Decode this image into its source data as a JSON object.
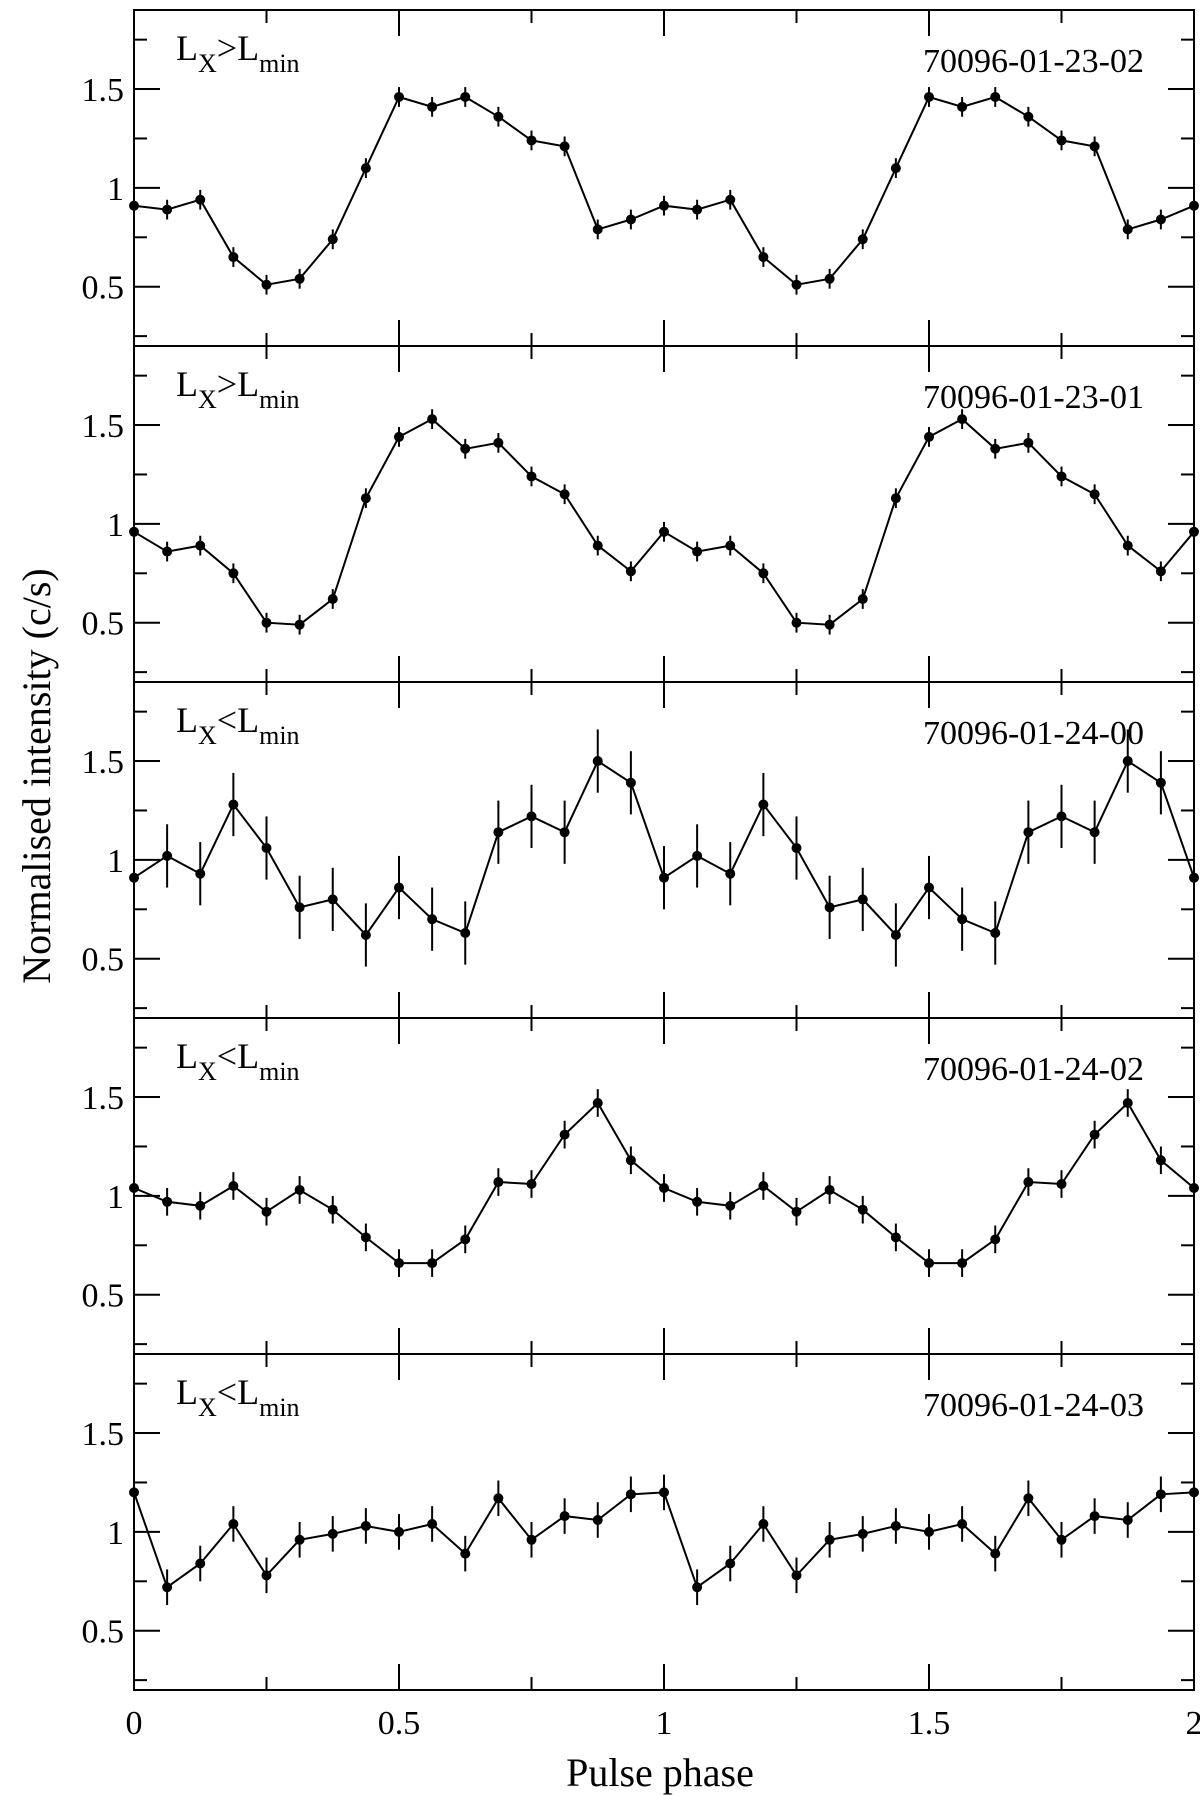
{
  "figure": {
    "ylabel": "Normalised intensity (c/s)",
    "xlabel": "Pulse phase",
    "x_tick_labels": [
      "0",
      "0.5",
      "1",
      "1.5",
      "2"
    ],
    "y_tick_labels": [
      "0.5",
      "1",
      "1.5"
    ],
    "line_color": "#000000",
    "background": "#ffffff"
  },
  "chart_data": [
    {
      "type": "line",
      "label": "LX>Lmin",
      "label_main": "L",
      "label_sub1": "X",
      "label_op": ">",
      "label_main2": "L",
      "label_sub2": "min",
      "obs_id": "70096-01-23-02",
      "xlim": [
        0,
        2
      ],
      "ylim": [
        0.2,
        1.9
      ],
      "y_ticks": [
        0.5,
        1,
        1.5
      ],
      "x": [
        0,
        0.0625,
        0.125,
        0.1875,
        0.25,
        0.3125,
        0.375,
        0.4375,
        0.5,
        0.5625,
        0.625,
        0.6875,
        0.75,
        0.8125,
        0.875,
        0.9375,
        1,
        1.0625,
        1.125,
        1.1875,
        1.25,
        1.3125,
        1.375,
        1.4375,
        1.5,
        1.5625,
        1.625,
        1.6875,
        1.75,
        1.8125,
        1.875,
        1.9375,
        2
      ],
      "y": [
        0.91,
        0.89,
        0.94,
        0.65,
        0.51,
        0.54,
        0.74,
        1.1,
        1.46,
        1.41,
        1.46,
        1.36,
        1.24,
        1.21,
        0.79,
        0.84,
        0.91,
        0.89,
        0.94,
        0.65,
        0.51,
        0.54,
        0.74,
        1.1,
        1.46,
        1.41,
        1.46,
        1.36,
        1.24,
        1.21,
        0.79,
        0.84,
        0.91
      ],
      "yerr": [
        0.05,
        0.05,
        0.05,
        0.05,
        0.05,
        0.05,
        0.05,
        0.05,
        0.05,
        0.05,
        0.05,
        0.05,
        0.05,
        0.05,
        0.05,
        0.05,
        0.05,
        0.05,
        0.05,
        0.05,
        0.05,
        0.05,
        0.05,
        0.05,
        0.05,
        0.05,
        0.05,
        0.05,
        0.05,
        0.05,
        0.05,
        0.05,
        0.05
      ]
    },
    {
      "type": "line",
      "label": "LX>Lmin",
      "label_main": "L",
      "label_sub1": "X",
      "label_op": ">",
      "label_main2": "L",
      "label_sub2": "min",
      "obs_id": "70096-01-23-01",
      "xlim": [
        0,
        2
      ],
      "ylim": [
        0.2,
        1.9
      ],
      "y_ticks": [
        0.5,
        1,
        1.5
      ],
      "x": [
        0,
        0.0625,
        0.125,
        0.1875,
        0.25,
        0.3125,
        0.375,
        0.4375,
        0.5,
        0.5625,
        0.625,
        0.6875,
        0.75,
        0.8125,
        0.875,
        0.9375,
        1,
        1.0625,
        1.125,
        1.1875,
        1.25,
        1.3125,
        1.375,
        1.4375,
        1.5,
        1.5625,
        1.625,
        1.6875,
        1.75,
        1.8125,
        1.875,
        1.9375,
        2
      ],
      "y": [
        0.96,
        0.86,
        0.89,
        0.75,
        0.5,
        0.49,
        0.62,
        1.13,
        1.44,
        1.53,
        1.38,
        1.41,
        1.24,
        1.15,
        0.89,
        0.76,
        0.96,
        0.86,
        0.89,
        0.75,
        0.5,
        0.49,
        0.62,
        1.13,
        1.44,
        1.53,
        1.38,
        1.41,
        1.24,
        1.15,
        0.89,
        0.76,
        0.96
      ],
      "yerr": [
        0.05,
        0.05,
        0.05,
        0.05,
        0.05,
        0.05,
        0.05,
        0.05,
        0.05,
        0.05,
        0.05,
        0.05,
        0.05,
        0.05,
        0.05,
        0.05,
        0.05,
        0.05,
        0.05,
        0.05,
        0.05,
        0.05,
        0.05,
        0.05,
        0.05,
        0.05,
        0.05,
        0.05,
        0.05,
        0.05,
        0.05,
        0.05,
        0.05
      ]
    },
    {
      "type": "line",
      "label": "LX<Lmin",
      "label_main": "L",
      "label_sub1": "X",
      "label_op": "<",
      "label_main2": "L",
      "label_sub2": "min",
      "obs_id": "70096-01-24-00",
      "xlim": [
        0,
        2
      ],
      "ylim": [
        0.2,
        1.9
      ],
      "y_ticks": [
        0.5,
        1,
        1.5
      ],
      "x": [
        0,
        0.0625,
        0.125,
        0.1875,
        0.25,
        0.3125,
        0.375,
        0.4375,
        0.5,
        0.5625,
        0.625,
        0.6875,
        0.75,
        0.8125,
        0.875,
        0.9375,
        1,
        1.0625,
        1.125,
        1.1875,
        1.25,
        1.3125,
        1.375,
        1.4375,
        1.5,
        1.5625,
        1.625,
        1.6875,
        1.75,
        1.8125,
        1.875,
        1.9375,
        2
      ],
      "y": [
        0.91,
        1.02,
        0.93,
        1.28,
        1.06,
        0.76,
        0.8,
        0.62,
        0.86,
        0.7,
        0.63,
        1.14,
        1.22,
        1.14,
        1.5,
        1.39,
        0.91,
        1.02,
        0.93,
        1.28,
        1.06,
        0.76,
        0.8,
        0.62,
        0.86,
        0.7,
        0.63,
        1.14,
        1.22,
        1.14,
        1.5,
        1.39,
        0.91
      ],
      "yerr": [
        0.0,
        0.16,
        0.16,
        0.16,
        0.16,
        0.16,
        0.16,
        0.16,
        0.16,
        0.16,
        0.16,
        0.16,
        0.16,
        0.16,
        0.16,
        0.16,
        0.16,
        0.16,
        0.16,
        0.16,
        0.16,
        0.16,
        0.16,
        0.16,
        0.16,
        0.16,
        0.16,
        0.16,
        0.16,
        0.16,
        0.16,
        0.16,
        0.0
      ]
    },
    {
      "type": "line",
      "label": "LX<Lmin",
      "label_main": "L",
      "label_sub1": "X",
      "label_op": "<",
      "label_main2": "L",
      "label_sub2": "min",
      "obs_id": "70096-01-24-02",
      "xlim": [
        0,
        2
      ],
      "ylim": [
        0.2,
        1.9
      ],
      "y_ticks": [
        0.5,
        1,
        1.5
      ],
      "x": [
        0,
        0.0625,
        0.125,
        0.1875,
        0.25,
        0.3125,
        0.375,
        0.4375,
        0.5,
        0.5625,
        0.625,
        0.6875,
        0.75,
        0.8125,
        0.875,
        0.9375,
        1,
        1.0625,
        1.125,
        1.1875,
        1.25,
        1.3125,
        1.375,
        1.4375,
        1.5,
        1.5625,
        1.625,
        1.6875,
        1.75,
        1.8125,
        1.875,
        1.9375,
        2
      ],
      "y": [
        1.04,
        0.97,
        0.95,
        1.05,
        0.92,
        1.03,
        0.93,
        0.79,
        0.66,
        0.66,
        0.78,
        1.07,
        1.06,
        1.31,
        1.47,
        1.18,
        1.04,
        0.97,
        0.95,
        1.05,
        0.92,
        1.03,
        0.93,
        0.79,
        0.66,
        0.66,
        0.78,
        1.07,
        1.06,
        1.31,
        1.47,
        1.18,
        1.04
      ],
      "yerr": [
        0.07,
        0.07,
        0.07,
        0.07,
        0.07,
        0.07,
        0.07,
        0.07,
        0.07,
        0.07,
        0.07,
        0.07,
        0.07,
        0.07,
        0.07,
        0.07,
        0.07,
        0.07,
        0.07,
        0.07,
        0.07,
        0.07,
        0.07,
        0.07,
        0.07,
        0.07,
        0.07,
        0.07,
        0.07,
        0.07,
        0.07,
        0.07,
        0.07
      ]
    },
    {
      "type": "line",
      "label": "LX<Lmin",
      "label_main": "L",
      "label_sub1": "X",
      "label_op": "<",
      "label_main2": "L",
      "label_sub2": "min",
      "obs_id": "70096-01-24-03",
      "xlim": [
        0,
        2
      ],
      "ylim": [
        0.2,
        1.9
      ],
      "y_ticks": [
        0.5,
        1,
        1.5
      ],
      "x": [
        0,
        0.0625,
        0.125,
        0.1875,
        0.25,
        0.3125,
        0.375,
        0.4375,
        0.5,
        0.5625,
        0.625,
        0.6875,
        0.75,
        0.8125,
        0.875,
        0.9375,
        1,
        1.0625,
        1.125,
        1.1875,
        1.25,
        1.3125,
        1.375,
        1.4375,
        1.5,
        1.5625,
        1.625,
        1.6875,
        1.75,
        1.8125,
        1.875,
        1.9375,
        2
      ],
      "y": [
        1.2,
        0.72,
        0.84,
        1.04,
        0.78,
        0.96,
        0.99,
        1.03,
        1.0,
        1.04,
        0.89,
        1.17,
        0.96,
        1.08,
        1.06,
        1.19,
        1.2,
        0.72,
        0.84,
        1.04,
        0.78,
        0.96,
        0.99,
        1.03,
        1.0,
        1.04,
        0.89,
        1.17,
        0.96,
        1.08,
        1.06,
        1.19,
        1.2
      ],
      "yerr": [
        0.09,
        0.09,
        0.09,
        0.09,
        0.09,
        0.09,
        0.09,
        0.09,
        0.09,
        0.09,
        0.09,
        0.09,
        0.09,
        0.09,
        0.09,
        0.09,
        0.09,
        0.09,
        0.09,
        0.09,
        0.09,
        0.09,
        0.09,
        0.09,
        0.09,
        0.09,
        0.09,
        0.09,
        0.09,
        0.09,
        0.09,
        0.09,
        0.09
      ]
    }
  ]
}
